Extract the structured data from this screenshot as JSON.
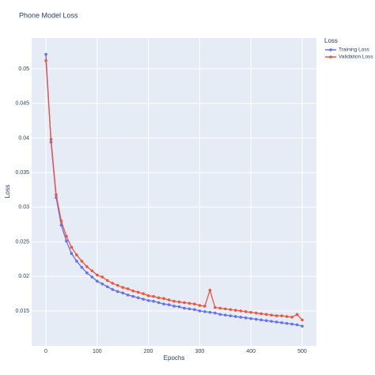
{
  "chart_data": {
    "type": "line",
    "title": "Phone Model Loss",
    "x_label": "Epochs",
    "y_label": "Loss",
    "legend_title": "Loss",
    "legend_position": "right",
    "x": [
      0,
      10,
      20,
      30,
      40,
      50,
      60,
      70,
      80,
      90,
      100,
      110,
      120,
      130,
      140,
      150,
      160,
      170,
      180,
      190,
      200,
      210,
      220,
      230,
      240,
      250,
      260,
      270,
      280,
      290,
      300,
      310,
      320,
      330,
      340,
      350,
      360,
      370,
      380,
      390,
      400,
      410,
      420,
      430,
      440,
      450,
      460,
      470,
      480,
      490,
      500
    ],
    "series": [
      {
        "name": "Training Loss",
        "color": "#636efa",
        "values": [
          0.0521,
          0.0394,
          0.0314,
          0.0274,
          0.0251,
          0.0233,
          0.0222,
          0.0213,
          0.0205,
          0.0199,
          0.0193,
          0.0189,
          0.0185,
          0.0181,
          0.0178,
          0.0176,
          0.0173,
          0.0171,
          0.0169,
          0.0167,
          0.0165,
          0.0164,
          0.0162,
          0.016,
          0.0159,
          0.0157,
          0.0156,
          0.0154,
          0.0153,
          0.0152,
          0.015,
          0.0149,
          0.0148,
          0.0147,
          0.0145,
          0.0144,
          0.0143,
          0.0142,
          0.0141,
          0.014,
          0.0139,
          0.0138,
          0.0137,
          0.0136,
          0.0135,
          0.0134,
          0.0133,
          0.0132,
          0.0131,
          0.013,
          0.0128
        ]
      },
      {
        "name": "Validation Loss",
        "color": "#EF553B",
        "values": [
          0.0512,
          0.0398,
          0.0318,
          0.028,
          0.0258,
          0.0242,
          0.0231,
          0.0222,
          0.0214,
          0.0208,
          0.0202,
          0.0199,
          0.0194,
          0.019,
          0.0187,
          0.0184,
          0.0182,
          0.0179,
          0.0177,
          0.0175,
          0.0172,
          0.0171,
          0.0169,
          0.0168,
          0.0166,
          0.0164,
          0.0163,
          0.0162,
          0.0161,
          0.016,
          0.0158,
          0.0157,
          0.018,
          0.0155,
          0.0154,
          0.0153,
          0.0152,
          0.0151,
          0.015,
          0.0149,
          0.0148,
          0.0147,
          0.0146,
          0.0145,
          0.0144,
          0.0143,
          0.0143,
          0.0142,
          0.0141,
          0.0145,
          0.0137
        ]
      }
    ],
    "xlim": [
      -27.8,
      527.8
    ],
    "xticks": [
      0,
      100,
      200,
      300,
      400,
      500
    ],
    "ylim": [
      0.00997,
      0.05446
    ],
    "yticks": [
      0.015,
      0.02,
      0.025,
      0.03,
      0.035,
      0.04,
      0.045,
      0.05
    ],
    "grid": true
  }
}
